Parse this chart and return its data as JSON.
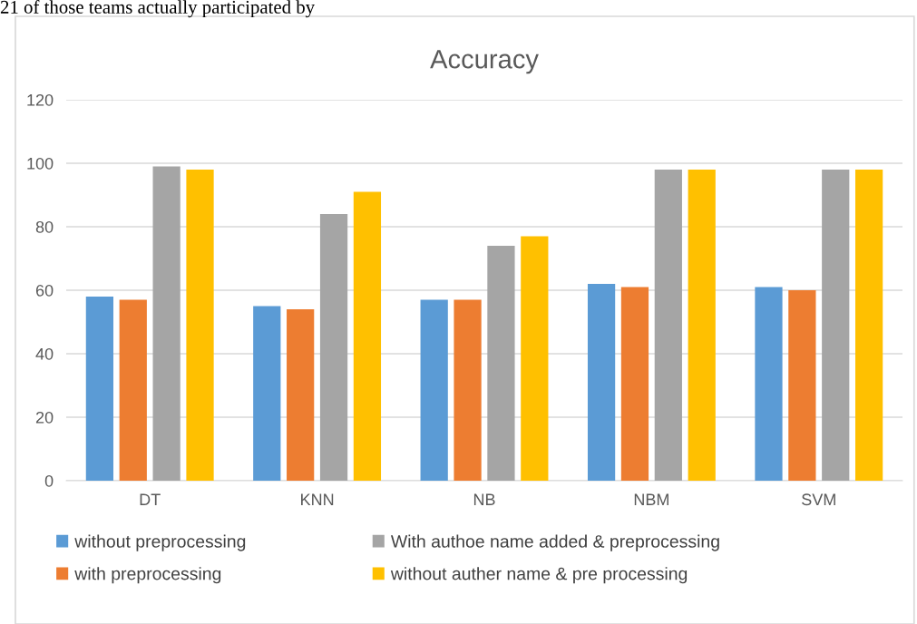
{
  "chart_data": {
    "type": "bar",
    "title": "Accuracy",
    "categories": [
      "DT",
      "KNN",
      "NB",
      "NBM",
      "SVM"
    ],
    "series": [
      {
        "name": "without preprocessing",
        "color": "#5b9bd5",
        "values": [
          58,
          55,
          57,
          62,
          61
        ]
      },
      {
        "name": "with preprocessing",
        "color": "#ed7d31",
        "values": [
          57,
          54,
          57,
          61,
          60
        ]
      },
      {
        "name": "With authoe name added & preprocessing",
        "color": "#a5a5a5",
        "values": [
          99,
          84,
          74,
          98,
          98
        ]
      },
      {
        "name": "without auther name & pre processing",
        "color": "#ffc000",
        "values": [
          98,
          91,
          77,
          98,
          98
        ]
      }
    ],
    "ylim": [
      0,
      120
    ],
    "yticks": [
      0,
      20,
      40,
      60,
      80,
      100,
      120
    ],
    "grid": "y",
    "legend": "bottom",
    "annotations": [
      "21 of those teams actually participated by"
    ]
  }
}
